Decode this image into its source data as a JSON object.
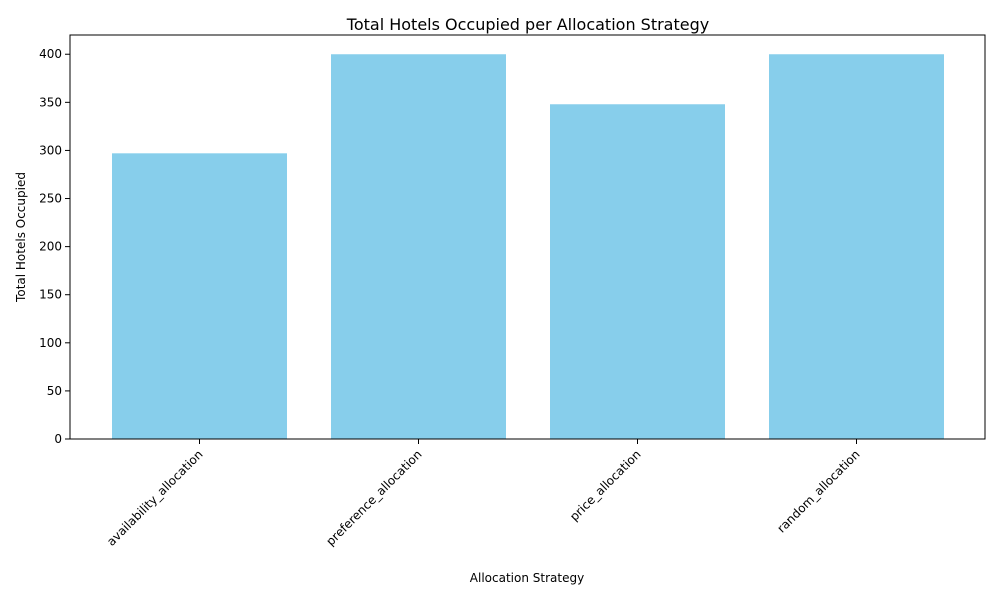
{
  "chart_data": {
    "type": "bar",
    "title": "Total Hotels Occupied per Allocation Strategy",
    "xlabel": "Allocation Strategy",
    "ylabel": "Total Hotels Occupied",
    "categories": [
      "availability_allocation",
      "preference_allocation",
      "price_allocation",
      "random_allocation"
    ],
    "values": [
      297,
      400,
      348,
      400
    ],
    "ylim": [
      0,
      420
    ],
    "yticks": [
      0,
      50,
      100,
      150,
      200,
      250,
      300,
      350,
      400
    ],
    "bar_color": "#87CEEB",
    "grid": false,
    "legend": "none"
  }
}
